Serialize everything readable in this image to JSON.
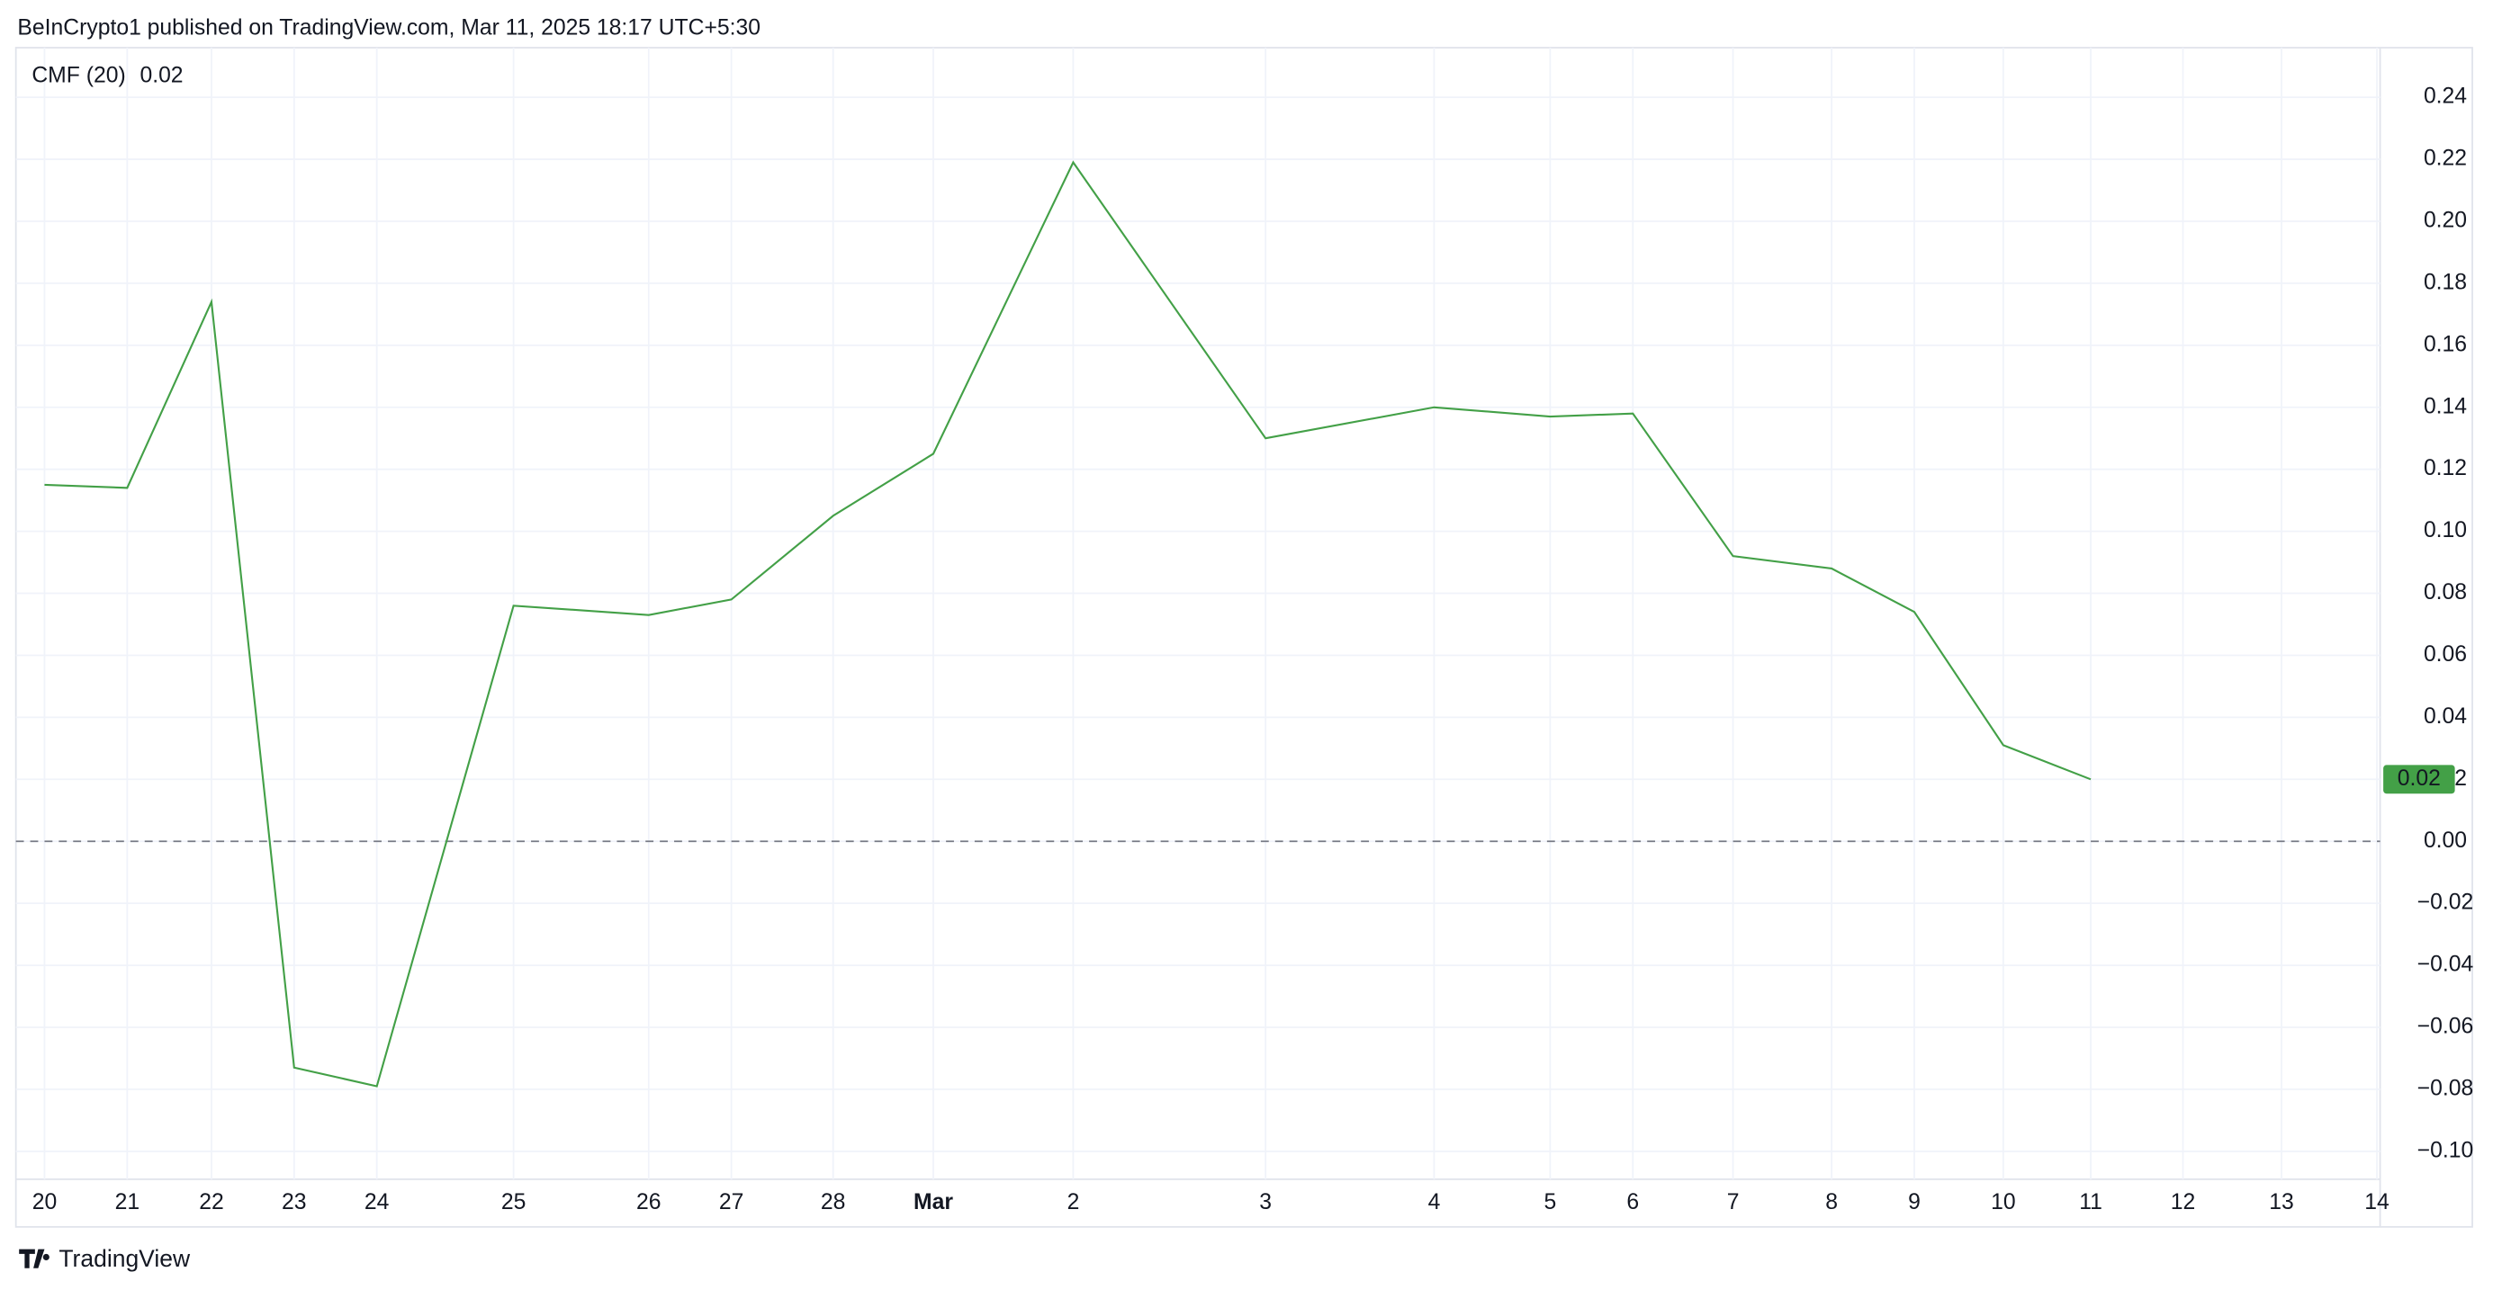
{
  "header": {
    "text": "BeInCrypto1 published on TradingView.com, Mar 11, 2025 18:17 UTC+5:30"
  },
  "footer": {
    "logo_text": "TradingView"
  },
  "chart_data": {
    "type": "line",
    "legend": {
      "name": "CMF (20)",
      "value_label": "0.02"
    },
    "categories": [
      "20",
      "21",
      "22",
      "23",
      "24",
      "25",
      "26",
      "27",
      "28",
      "Mar",
      "2",
      "3",
      "4",
      "5",
      "6",
      "7",
      "8",
      "9",
      "10",
      "11",
      "12",
      "13",
      "14"
    ],
    "series": [
      {
        "name": "CMF (20)",
        "color": "#43a047",
        "values": [
          0.115,
          0.114,
          0.174,
          -0.073,
          -0.079,
          0.076,
          0.073,
          0.078,
          0.105,
          0.125,
          0.219,
          0.13,
          0.14,
          0.137,
          0.138,
          0.092,
          0.088,
          0.074,
          0.031,
          0.02,
          null,
          null,
          null
        ]
      }
    ],
    "ylim": [
      -0.109,
      0.256
    ],
    "yticks": [
      {
        "value": -0.1,
        "label": "−0.10"
      },
      {
        "value": -0.08,
        "label": "−0.08"
      },
      {
        "value": -0.06,
        "label": "−0.06"
      },
      {
        "value": -0.04,
        "label": "−0.04"
      },
      {
        "value": -0.02,
        "label": "−0.02"
      },
      {
        "value": 0,
        "label": "0.00"
      },
      {
        "value": 0.02,
        "label": "0.02"
      },
      {
        "value": 0.04,
        "label": "0.04"
      },
      {
        "value": 0.06,
        "label": "0.06"
      },
      {
        "value": 0.08,
        "label": "0.08"
      },
      {
        "value": 0.1,
        "label": "0.10"
      },
      {
        "value": 0.12,
        "label": "0.12"
      },
      {
        "value": 0.14,
        "label": "0.14"
      },
      {
        "value": 0.16,
        "label": "0.16"
      },
      {
        "value": 0.18,
        "label": "0.18"
      },
      {
        "value": 0.2,
        "label": "0.20"
      },
      {
        "value": 0.22,
        "label": "0.22"
      },
      {
        "value": 0.24,
        "label": "0.24"
      }
    ],
    "hline": 0,
    "grid": true,
    "bold_categories": [
      "Mar"
    ]
  }
}
